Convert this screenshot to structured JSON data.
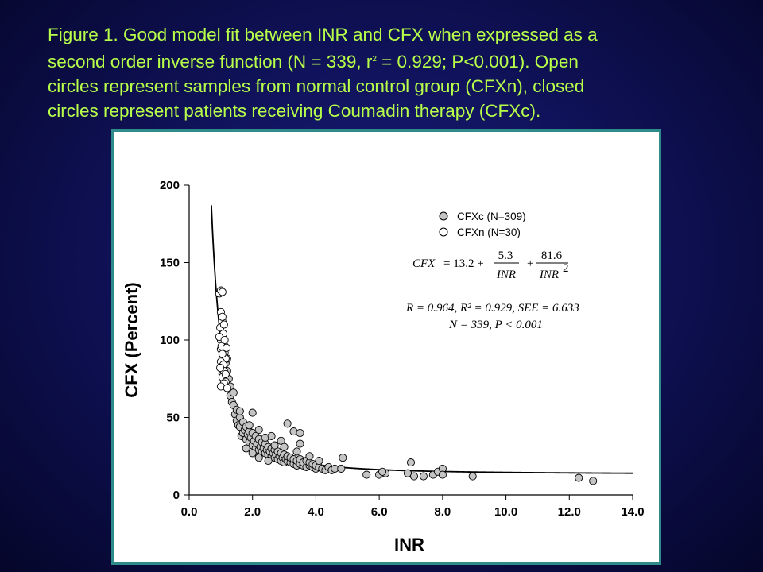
{
  "caption": {
    "line1": "Figure 1. Good model fit between INR and CFX when expressed as a",
    "line2_a": "second order inverse function (N = 339, r",
    "line2_sup": "2",
    "line2_b": " = 0.929; P<0.001). Open",
    "line3": "circles represent samples from normal control group (CFXn), closed",
    "line4": "circles represent patients receiving Coumadin therapy (CFXc)."
  },
  "colors": {
    "caption": "#b8ff4a",
    "panel_border": "#2f8a8a",
    "closed_fill": "#c4c4c4",
    "open_fill": "#ffffff"
  },
  "chart_data": {
    "type": "scatter",
    "xlabel": "INR",
    "ylabel": "CFX (Percent)",
    "xlim": [
      0,
      14
    ],
    "ylim": [
      0,
      200
    ],
    "xticks": [
      "0.0",
      "2.0",
      "4.0",
      "6.0",
      "8.0",
      "10.0",
      "12.0",
      "14.0"
    ],
    "yticks": [
      "0",
      "50",
      "100",
      "150",
      "200"
    ],
    "legend_position": "top-right",
    "fit_curve": {
      "intercept": 13.2,
      "a": 5.3,
      "b": 81.6,
      "x_range": [
        0.6,
        14.0
      ]
    },
    "equation": {
      "lhs": "CFX",
      "eq": "= 13.2 +",
      "num1": "5.3",
      "den1": "INR",
      "plus": "+",
      "num2": "81.6",
      "den2": "INR",
      "den2_exp": "2"
    },
    "stats": {
      "line1": "R = 0.964, R² = 0.929, SEE = 6.633",
      "line2": "N = 339, P < 0.001"
    },
    "series": [
      {
        "name": "CFXc  (N=309)",
        "marker": "closed",
        "points": [
          [
            1.05,
            78
          ],
          [
            1.1,
            72
          ],
          [
            1.15,
            85
          ],
          [
            1.2,
            80
          ],
          [
            1.25,
            75
          ],
          [
            1.2,
            88
          ],
          [
            1.3,
            70
          ],
          [
            1.3,
            64
          ],
          [
            1.35,
            60
          ],
          [
            1.4,
            58
          ],
          [
            1.4,
            66
          ],
          [
            1.45,
            52
          ],
          [
            1.5,
            55
          ],
          [
            1.5,
            48
          ],
          [
            1.55,
            45
          ],
          [
            1.6,
            44
          ],
          [
            1.6,
            50
          ],
          [
            1.65,
            38
          ],
          [
            1.7,
            40
          ],
          [
            1.7,
            47
          ],
          [
            1.75,
            42
          ],
          [
            1.8,
            36
          ],
          [
            1.8,
            44
          ],
          [
            1.85,
            39
          ],
          [
            1.9,
            34
          ],
          [
            1.9,
            41
          ],
          [
            1.95,
            37
          ],
          [
            2.0,
            32
          ],
          [
            2.0,
            40
          ],
          [
            2.05,
            35
          ],
          [
            2.1,
            30
          ],
          [
            2.1,
            38
          ],
          [
            2.15,
            33
          ],
          [
            2.2,
            29
          ],
          [
            2.2,
            36
          ],
          [
            2.25,
            31
          ],
          [
            2.3,
            28
          ],
          [
            2.3,
            34
          ],
          [
            2.35,
            30
          ],
          [
            2.4,
            27
          ],
          [
            2.4,
            33
          ],
          [
            2.45,
            29
          ],
          [
            2.5,
            26
          ],
          [
            2.5,
            31
          ],
          [
            2.55,
            28
          ],
          [
            2.6,
            25
          ],
          [
            2.6,
            30
          ],
          [
            2.65,
            27
          ],
          [
            2.7,
            24
          ],
          [
            2.7,
            29
          ],
          [
            2.75,
            26
          ],
          [
            2.8,
            23
          ],
          [
            2.8,
            28
          ],
          [
            2.85,
            25
          ],
          [
            2.9,
            22
          ],
          [
            2.9,
            27
          ],
          [
            2.95,
            24
          ],
          [
            3.0,
            21
          ],
          [
            3.0,
            26
          ],
          [
            3.05,
            23
          ],
          [
            3.1,
            22
          ],
          [
            3.1,
            25
          ],
          [
            3.2,
            21
          ],
          [
            3.2,
            24
          ],
          [
            3.3,
            20
          ],
          [
            3.3,
            23
          ],
          [
            3.4,
            19
          ],
          [
            3.4,
            22
          ],
          [
            3.5,
            20
          ],
          [
            3.5,
            23
          ],
          [
            3.6,
            19
          ],
          [
            3.6,
            21
          ],
          [
            3.7,
            18
          ],
          [
            3.7,
            22
          ],
          [
            3.8,
            19
          ],
          [
            3.8,
            21
          ],
          [
            3.9,
            18
          ],
          [
            3.9,
            20
          ],
          [
            4.0,
            17
          ],
          [
            4.0,
            19
          ],
          [
            4.1,
            18
          ],
          [
            4.2,
            17
          ],
          [
            4.3,
            16
          ],
          [
            4.4,
            18
          ],
          [
            4.5,
            16
          ],
          [
            4.6,
            17
          ],
          [
            4.8,
            17
          ],
          [
            4.85,
            24
          ],
          [
            2.0,
            53
          ],
          [
            1.6,
            54
          ],
          [
            2.4,
            37
          ],
          [
            2.6,
            38
          ],
          [
            2.9,
            35
          ],
          [
            3.1,
            46
          ],
          [
            3.3,
            41
          ],
          [
            3.5,
            40
          ],
          [
            3.5,
            33
          ],
          [
            3.0,
            31
          ],
          [
            2.2,
            42
          ],
          [
            1.9,
            45
          ],
          [
            2.7,
            32
          ],
          [
            3.8,
            25
          ],
          [
            4.1,
            22
          ],
          [
            3.4,
            28
          ],
          [
            2.5,
            22
          ],
          [
            2.2,
            24
          ],
          [
            1.8,
            30
          ],
          [
            2.0,
            27
          ],
          [
            5.6,
            13
          ],
          [
            6.0,
            13
          ],
          [
            6.2,
            14
          ],
          [
            6.1,
            15
          ],
          [
            6.9,
            14
          ],
          [
            7.0,
            21
          ],
          [
            7.1,
            12
          ],
          [
            7.4,
            12
          ],
          [
            7.7,
            13
          ],
          [
            7.85,
            15
          ],
          [
            8.0,
            17
          ],
          [
            8.0,
            13
          ],
          [
            8.95,
            12
          ],
          [
            12.3,
            11
          ],
          [
            12.75,
            9
          ]
        ]
      },
      {
        "name": "CFXn  (N=30)",
        "marker": "open",
        "points": [
          [
            0.95,
            130
          ],
          [
            1.0,
            132
          ],
          [
            1.05,
            131
          ],
          [
            1.0,
            118
          ],
          [
            1.05,
            112
          ],
          [
            0.98,
            108
          ],
          [
            1.08,
            104
          ],
          [
            1.0,
            100
          ],
          [
            1.1,
            97
          ],
          [
            1.0,
            94
          ],
          [
            1.12,
            92
          ],
          [
            1.05,
            89
          ],
          [
            1.15,
            88
          ],
          [
            1.0,
            86
          ],
          [
            1.08,
            84
          ],
          [
            1.1,
            80
          ],
          [
            1.05,
            76
          ],
          [
            1.15,
            73
          ],
          [
            1.1,
            72
          ],
          [
            1.0,
            70
          ],
          [
            1.2,
            69
          ],
          [
            1.05,
            115
          ],
          [
            1.1,
            110
          ],
          [
            0.95,
            102
          ],
          [
            1.12,
            100
          ],
          [
            1.02,
            96
          ],
          [
            1.18,
            95
          ],
          [
            1.05,
            91
          ],
          [
            0.98,
            82
          ],
          [
            1.15,
            78
          ]
        ]
      }
    ]
  }
}
